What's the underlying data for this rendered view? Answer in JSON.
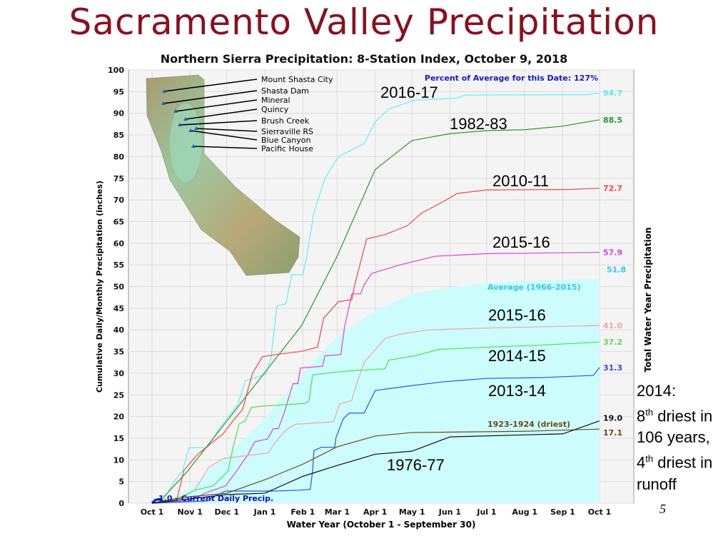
{
  "page": {
    "title": "Sacramento Valley Precipitation",
    "page_number": "5"
  },
  "note": {
    "line1": "2014:",
    "l2_num": "8",
    "l2_sup": "th",
    "l2_rest": " driest in",
    "line3": "106 years,",
    "l4_num": "4",
    "l4_sup": "th",
    "l4_rest": " driest in",
    "line5": "runoff"
  },
  "map": {
    "stations": [
      "Mount Shasta City",
      "Shasta Dam",
      "Mineral",
      "Quincy",
      "Brush Creek",
      "Sierraville RS",
      "Blue Canyon",
      "Pacific House"
    ]
  },
  "chart_data": {
    "type": "line",
    "title": "Northern Sierra Precipitation: 8-Station Index, October 9, 2018",
    "subtitle": "Percent of Average for this Date: 127%",
    "xlabel": "Water Year (October 1 - September 30)",
    "ylabel": "Cumulative Daily/Monthly Precipitation (inches)",
    "ylabel_right": "Total Water Year Precipitation",
    "x_unit": "days since Oct 1",
    "xlim": [
      0,
      365
    ],
    "ylim": [
      0,
      100
    ],
    "grid": true,
    "yticks": [
      0,
      5,
      10,
      15,
      20,
      25,
      30,
      35,
      40,
      45,
      50,
      55,
      60,
      65,
      70,
      75,
      80,
      85,
      90,
      95,
      100
    ],
    "xticks": [
      {
        "label": "Oct 1",
        "day": 0
      },
      {
        "label": "Nov 1",
        "day": 31
      },
      {
        "label": "Dec 1",
        "day": 61
      },
      {
        "label": "Jan 1",
        "day": 92
      },
      {
        "label": "Feb 1",
        "day": 123
      },
      {
        "label": "Mar 1",
        "day": 151
      },
      {
        "label": "Apr 1",
        "day": 182
      },
      {
        "label": "May 1",
        "day": 212
      },
      {
        "label": "Jun 1",
        "day": 243
      },
      {
        "label": "Jul 1",
        "day": 273
      },
      {
        "label": "Aug 1",
        "day": 304
      },
      {
        "label": "Sep 1",
        "day": 335
      },
      {
        "label": "Oct 1",
        "day": 365
      }
    ],
    "average": {
      "name": "Average (1966-2015)",
      "total": "51.8",
      "color": "#ccfcfc",
      "label_color": "#33c8f0",
      "points": [
        [
          0,
          0
        ],
        [
          15,
          0.8
        ],
        [
          31,
          3.5
        ],
        [
          61,
          11
        ],
        [
          92,
          19.5
        ],
        [
          123,
          30
        ],
        [
          151,
          38.5
        ],
        [
          182,
          44.5
        ],
        [
          212,
          48.3
        ],
        [
          243,
          49.8
        ],
        [
          273,
          50.8
        ],
        [
          304,
          51.3
        ],
        [
          334,
          51.6
        ],
        [
          365,
          51.8
        ]
      ]
    },
    "series": [
      {
        "name": "2016-17",
        "total": "94.7",
        "color": "#5ef2f2",
        "points": [
          [
            0,
            0
          ],
          [
            10,
            1
          ],
          [
            18,
            5
          ],
          [
            25,
            7.5
          ],
          [
            30,
            12.8
          ],
          [
            45,
            12.8
          ],
          [
            56,
            17.7
          ],
          [
            70,
            22.8
          ],
          [
            76,
            28.2
          ],
          [
            93,
            29.8
          ],
          [
            97,
            33.6
          ],
          [
            102,
            45.6
          ],
          [
            109,
            46
          ],
          [
            114,
            52.7
          ],
          [
            123,
            52.7
          ],
          [
            126,
            56.6
          ],
          [
            132,
            67
          ],
          [
            141,
            75
          ],
          [
            152,
            80
          ],
          [
            173,
            83
          ],
          [
            182,
            88
          ],
          [
            193,
            91
          ],
          [
            214,
            93
          ],
          [
            249,
            93.5
          ],
          [
            255,
            94.2
          ],
          [
            354,
            94.3
          ],
          [
            365,
            94.7
          ]
        ]
      },
      {
        "name": "1982-83",
        "total": "88.5",
        "color": "#2a9a2a",
        "points": [
          [
            5,
            0
          ],
          [
            29,
            7.4
          ],
          [
            122,
            41
          ],
          [
            151,
            57
          ],
          [
            182,
            77
          ],
          [
            212,
            83.7
          ],
          [
            243,
            85.3
          ],
          [
            273,
            86
          ],
          [
            304,
            86.2
          ],
          [
            334,
            87
          ],
          [
            365,
            88.5
          ]
        ]
      },
      {
        "name": "2010-11",
        "total": "72.7",
        "color": "#f04848",
        "points": [
          [
            0,
            0
          ],
          [
            20,
            0.5
          ],
          [
            26,
            7.6
          ],
          [
            37,
            11.2
          ],
          [
            49,
            14
          ],
          [
            58,
            16
          ],
          [
            66,
            19
          ],
          [
            74,
            21.7
          ],
          [
            78,
            26
          ],
          [
            82,
            30
          ],
          [
            90,
            33.8
          ],
          [
            101,
            34.3
          ],
          [
            121,
            35
          ],
          [
            135,
            36
          ],
          [
            140,
            42.7
          ],
          [
            152,
            46.5
          ],
          [
            163,
            47
          ],
          [
            165,
            50
          ],
          [
            175,
            61
          ],
          [
            190,
            62
          ],
          [
            208,
            64
          ],
          [
            220,
            67
          ],
          [
            240,
            70
          ],
          [
            249,
            71.5
          ],
          [
            273,
            72.3
          ],
          [
            340,
            72.4
          ],
          [
            365,
            72.7
          ]
        ]
      },
      {
        "name": "2015-16",
        "total": "57.9",
        "color": "#e040e0",
        "points": [
          [
            0,
            0
          ],
          [
            30,
            0.5
          ],
          [
            45,
            2.5
          ],
          [
            60,
            4
          ],
          [
            69,
            7.4
          ],
          [
            74,
            9.5
          ],
          [
            78,
            11.1
          ],
          [
            84,
            14.2
          ],
          [
            94,
            14.8
          ],
          [
            99,
            17.2
          ],
          [
            103,
            17.2
          ],
          [
            108,
            21
          ],
          [
            115,
            27.6
          ],
          [
            119,
            27.6
          ],
          [
            121,
            31.2
          ],
          [
            139,
            31.6
          ],
          [
            141,
            34
          ],
          [
            154,
            34.3
          ],
          [
            157,
            40.6
          ],
          [
            163,
            48.3
          ],
          [
            170,
            48.3
          ],
          [
            173,
            50.4
          ],
          [
            179,
            53
          ],
          [
            202,
            55
          ],
          [
            231,
            57
          ],
          [
            273,
            57.6
          ],
          [
            365,
            57.9
          ]
        ]
      },
      {
        "name": "2015-16",
        "total": "41.0",
        "color": "#f4a4a4",
        "points": [
          [
            0,
            0
          ],
          [
            20,
            1
          ],
          [
            35,
            3
          ],
          [
            46,
            8.2
          ],
          [
            58,
            10.3
          ],
          [
            95,
            11.6
          ],
          [
            99,
            13.5
          ],
          [
            105,
            15.5
          ],
          [
            110,
            17.1
          ],
          [
            117,
            18.2
          ],
          [
            148,
            18.8
          ],
          [
            153,
            22.9
          ],
          [
            163,
            23.7
          ],
          [
            165,
            25.9
          ],
          [
            173,
            32.5
          ],
          [
            190,
            38
          ],
          [
            202,
            39
          ],
          [
            225,
            40
          ],
          [
            283,
            40.5
          ],
          [
            365,
            41
          ]
        ]
      },
      {
        "name": "2014-15",
        "total": "37.2",
        "color": "#50e050",
        "points": [
          [
            0,
            0
          ],
          [
            25,
            1.5
          ],
          [
            35,
            3
          ],
          [
            50,
            4
          ],
          [
            62,
            7.4
          ],
          [
            66,
            12.8
          ],
          [
            71,
            18.3
          ],
          [
            76,
            19
          ],
          [
            81,
            22.1
          ],
          [
            90,
            22.4
          ],
          [
            124,
            23
          ],
          [
            128,
            23.5
          ],
          [
            131,
            29.6
          ],
          [
            155,
            30.4
          ],
          [
            170,
            30.7
          ],
          [
            190,
            31
          ],
          [
            193,
            33
          ],
          [
            214,
            34
          ],
          [
            234,
            35.5
          ],
          [
            273,
            36
          ],
          [
            319,
            36.5
          ],
          [
            365,
            37.2
          ]
        ]
      },
      {
        "name": "2013-14",
        "total": "31.3",
        "color": "#3050e8",
        "points": [
          [
            0,
            0
          ],
          [
            45,
            0.5
          ],
          [
            50,
            1.5
          ],
          [
            60,
            2.8
          ],
          [
            100,
            2.8
          ],
          [
            120,
            3
          ],
          [
            129,
            3.2
          ],
          [
            131,
            7.4
          ],
          [
            132,
            12.1
          ],
          [
            138,
            12.9
          ],
          [
            149,
            12.9
          ],
          [
            150,
            15.1
          ],
          [
            156,
            19.5
          ],
          [
            161,
            20.8
          ],
          [
            173,
            20.8
          ],
          [
            182,
            26
          ],
          [
            208,
            27
          ],
          [
            237,
            28
          ],
          [
            273,
            28.8
          ],
          [
            319,
            29
          ],
          [
            360,
            29.5
          ],
          [
            365,
            31.3
          ]
        ]
      },
      {
        "name": "1923-1924 (driest)",
        "total": "17.1",
        "color": "#6b4a1a",
        "points": [
          [
            0,
            0
          ],
          [
            31,
            1.5
          ],
          [
            61,
            2.3
          ],
          [
            92,
            5.4
          ],
          [
            123,
            9
          ],
          [
            151,
            13
          ],
          [
            182,
            15.5
          ],
          [
            212,
            16.3
          ],
          [
            304,
            16.6
          ],
          [
            365,
            17.1
          ]
        ]
      },
      {
        "name": "1976-77",
        "total": "19.0",
        "color": "#111111",
        "points": [
          [
            0,
            0
          ],
          [
            31,
            1
          ],
          [
            61,
            2
          ],
          [
            92,
            2.3
          ],
          [
            123,
            6.2
          ],
          [
            151,
            8.7
          ],
          [
            182,
            11.3
          ],
          [
            212,
            12
          ],
          [
            243,
            15.3
          ],
          [
            335,
            16
          ],
          [
            365,
            19
          ]
        ]
      },
      {
        "name": "Current Daily Precip.",
        "total": "1.0",
        "color": "#1010c8",
        "points": [
          [
            0,
            0
          ],
          [
            3,
            0.8
          ],
          [
            8,
            1
          ]
        ]
      }
    ],
    "annotations": [
      "2016-17",
      "1982-83",
      "2010-11",
      "2015-16",
      "Average (1966-2015)",
      "2015-16",
      "2014-15",
      "2013-14",
      "1923-1924 (driest)",
      "1976-77",
      "1.0 - Current Daily Precip."
    ]
  }
}
